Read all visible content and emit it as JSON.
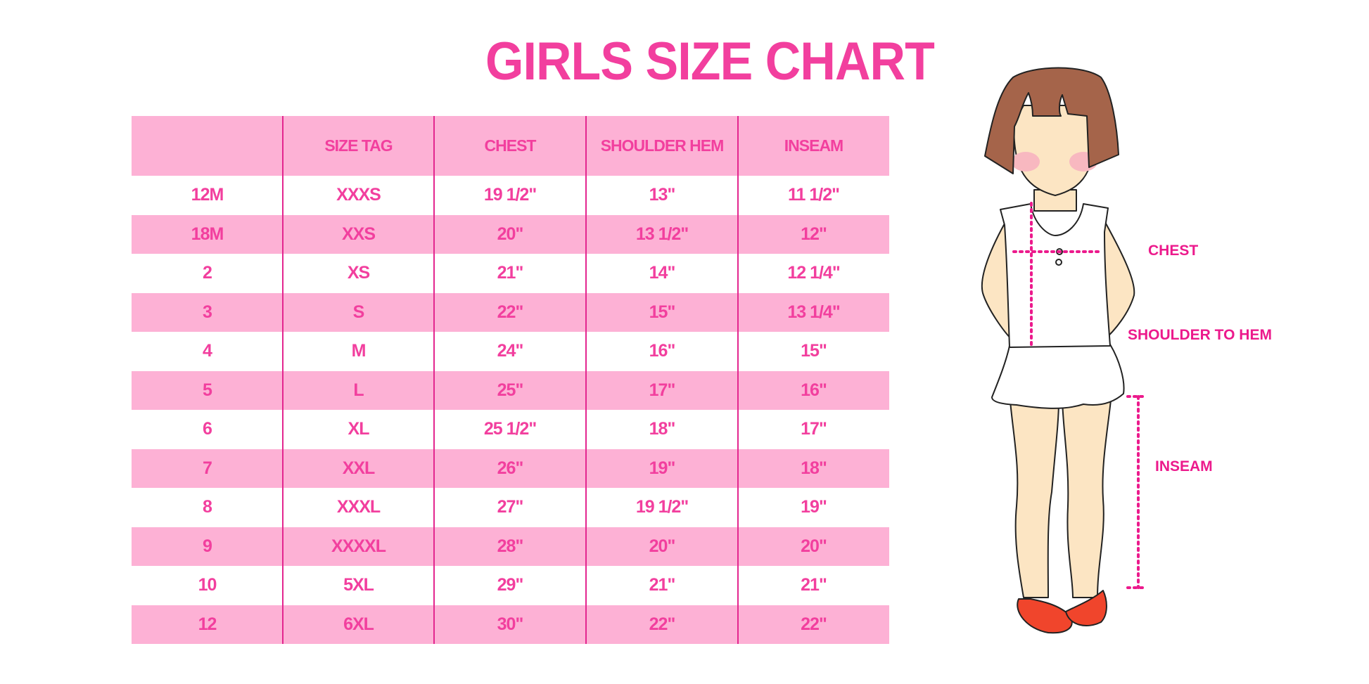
{
  "title": "GIRLS SIZE CHART",
  "colors": {
    "accent": "#f23f9e",
    "row_pink": "#fdb1d5",
    "divider": "#e3268f",
    "label": "#ec1a8c"
  },
  "table": {
    "headers": [
      "",
      "SIZE TAG",
      "CHEST",
      "SHOULDER HEM",
      "INSEAM"
    ],
    "rows": [
      [
        "12M",
        "XXXS",
        "19 1/2\"",
        "13\"",
        "11 1/2\""
      ],
      [
        "18M",
        "XXS",
        "20\"",
        "13 1/2\"",
        "12\""
      ],
      [
        "2",
        "XS",
        "21\"",
        "14\"",
        "12 1/4\""
      ],
      [
        "3",
        "S",
        "22\"",
        "15\"",
        "13 1/4\""
      ],
      [
        "4",
        "M",
        "24\"",
        "16\"",
        "15\""
      ],
      [
        "5",
        "L",
        "25\"",
        "17\"",
        "16\""
      ],
      [
        "6",
        "XL",
        "25 1/2\"",
        "18\"",
        "17\""
      ],
      [
        "7",
        "XXL",
        "26\"",
        "19\"",
        "18\""
      ],
      [
        "8",
        "XXXL",
        "27\"",
        "19 1/2\"",
        "19\""
      ],
      [
        "9",
        "XXXXL",
        "28\"",
        "20\"",
        "20\""
      ],
      [
        "10",
        "5XL",
        "29\"",
        "21\"",
        "21\""
      ],
      [
        "12",
        "6XL",
        "30\"",
        "22\"",
        "22\""
      ]
    ]
  },
  "figure": {
    "labels": {
      "chest": "CHEST",
      "shoulder": "SHOULDER TO HEM",
      "inseam": "INSEAM"
    }
  }
}
